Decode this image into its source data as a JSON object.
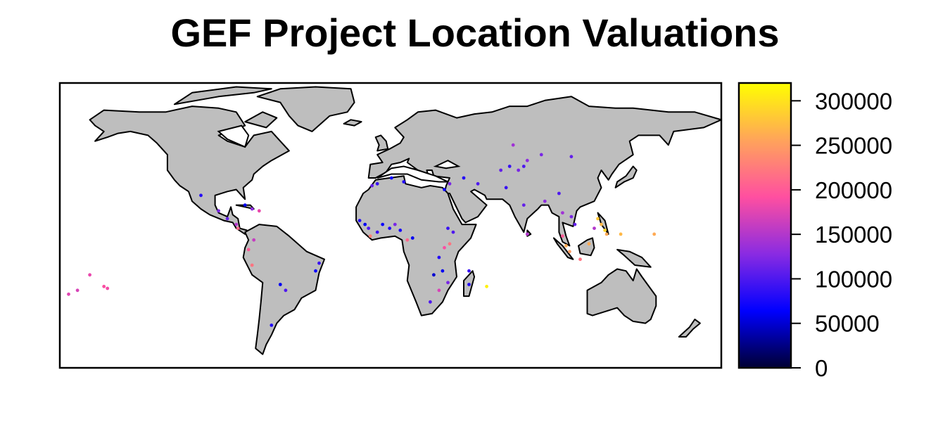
{
  "title": "GEF Project Location Valuations",
  "colorbar": {
    "min": 0,
    "max": 320000,
    "ticks": [
      {
        "value": 0,
        "label": "0"
      },
      {
        "value": 50000,
        "label": "50000"
      },
      {
        "value": 100000,
        "label": "100000"
      },
      {
        "value": 150000,
        "label": "150000"
      },
      {
        "value": 200000,
        "label": "200000"
      },
      {
        "value": 250000,
        "label": "250000"
      },
      {
        "value": 300000,
        "label": "300000"
      }
    ],
    "stops": [
      "#000033",
      "#0000ff",
      "#8a2be2",
      "#ff4fa0",
      "#ffa45a",
      "#ffff00"
    ]
  },
  "colors": {
    "land": "#bebebe",
    "border": "#000000",
    "ocean": "#ffffff"
  },
  "projects": [
    {
      "lon": -95,
      "lat": 19,
      "value": 120000
    },
    {
      "lon": -90,
      "lat": 15,
      "value": 110000
    },
    {
      "lon": -85,
      "lat": 12,
      "value": 150000
    },
    {
      "lon": -84,
      "lat": 10,
      "value": 210000
    },
    {
      "lon": -80,
      "lat": 22,
      "value": 60000
    },
    {
      "lon": -76,
      "lat": 20,
      "value": 130000
    },
    {
      "lon": -72,
      "lat": 19,
      "value": 180000
    },
    {
      "lon": -105,
      "lat": 27,
      "value": 80000
    },
    {
      "lon": -75,
      "lat": 4,
      "value": 160000
    },
    {
      "lon": -78,
      "lat": -1,
      "value": 200000
    },
    {
      "lon": -76,
      "lat": -9,
      "value": 220000
    },
    {
      "lon": -60,
      "lat": -19,
      "value": 60000
    },
    {
      "lon": -57,
      "lat": -22,
      "value": 100000
    },
    {
      "lon": -40,
      "lat": -12,
      "value": 70000
    },
    {
      "lon": -38,
      "lat": -8,
      "value": 90000
    },
    {
      "lon": -65,
      "lat": -40,
      "value": 80000
    },
    {
      "lon": -168,
      "lat": -14,
      "value": 180000
    },
    {
      "lon": -175,
      "lat": -22,
      "value": 170000
    },
    {
      "lon": -160,
      "lat": -20,
      "value": 190000
    },
    {
      "lon": -158,
      "lat": -21,
      "value": 185000
    },
    {
      "lon": -180,
      "lat": -24,
      "value": 175000
    },
    {
      "lon": -8,
      "lat": 32,
      "value": 110000
    },
    {
      "lon": -5,
      "lat": 33,
      "value": 90000
    },
    {
      "lon": 3,
      "lat": 36,
      "value": 70000
    },
    {
      "lon": 10,
      "lat": 34,
      "value": 80000
    },
    {
      "lon": -15,
      "lat": 14,
      "value": 80000
    },
    {
      "lon": -12,
      "lat": 12,
      "value": 60000
    },
    {
      "lon": -10,
      "lat": 10,
      "value": 100000
    },
    {
      "lon": -5,
      "lat": 8,
      "value": 90000
    },
    {
      "lon": -2,
      "lat": 12,
      "value": 70000
    },
    {
      "lon": 2,
      "lat": 10,
      "value": 80000
    },
    {
      "lon": 5,
      "lat": 12,
      "value": 120000
    },
    {
      "lon": 8,
      "lat": 9,
      "value": 75000
    },
    {
      "lon": -9,
      "lat": 6,
      "value": 230000
    },
    {
      "lon": 12,
      "lat": 4,
      "value": 210000
    },
    {
      "lon": 15,
      "lat": 5,
      "value": 60000
    },
    {
      "lon": 35,
      "lat": 10,
      "value": 90000
    },
    {
      "lon": 38,
      "lat": 8,
      "value": 100000
    },
    {
      "lon": 36,
      "lat": 2,
      "value": 220000
    },
    {
      "lon": 33,
      "lat": 0,
      "value": 190000
    },
    {
      "lon": 30,
      "lat": -5,
      "value": 80000
    },
    {
      "lon": 32,
      "lat": -12,
      "value": 60000
    },
    {
      "lon": 35,
      "lat": -18,
      "value": 120000
    },
    {
      "lon": 30,
      "lat": -22,
      "value": 170000
    },
    {
      "lon": 47,
      "lat": -19,
      "value": 80000
    },
    {
      "lon": 47,
      "lat": -12,
      "value": 90000
    },
    {
      "lon": 27,
      "lat": -14,
      "value": 50000
    },
    {
      "lon": 25,
      "lat": -28,
      "value": 100000
    },
    {
      "lon": 57,
      "lat": -20,
      "value": 310000
    },
    {
      "lon": 33,
      "lat": 30,
      "value": 70000
    },
    {
      "lon": 36,
      "lat": 33,
      "value": 120000
    },
    {
      "lon": 44,
      "lat": 36,
      "value": 80000
    },
    {
      "lon": 52,
      "lat": 33,
      "value": 100000
    },
    {
      "lon": 65,
      "lat": 40,
      "value": 110000
    },
    {
      "lon": 70,
      "lat": 42,
      "value": 90000
    },
    {
      "lon": 75,
      "lat": 40,
      "value": 120000
    },
    {
      "lon": 78,
      "lat": 42,
      "value": 100000
    },
    {
      "lon": 80,
      "lat": 45,
      "value": 130000
    },
    {
      "lon": 72,
      "lat": 53,
      "value": 140000
    },
    {
      "lon": 88,
      "lat": 48,
      "value": 120000
    },
    {
      "lon": 105,
      "lat": 47,
      "value": 110000
    },
    {
      "lon": 68,
      "lat": 31,
      "value": 90000
    },
    {
      "lon": 78,
      "lat": 22,
      "value": 110000
    },
    {
      "lon": 80,
      "lat": 7,
      "value": 150000
    },
    {
      "lon": 90,
      "lat": 24,
      "value": 130000
    },
    {
      "lon": 98,
      "lat": 28,
      "value": 100000
    },
    {
      "lon": 100,
      "lat": 18,
      "value": 140000
    },
    {
      "lon": 105,
      "lat": 16,
      "value": 120000
    },
    {
      "lon": 107,
      "lat": 12,
      "value": 110000
    },
    {
      "lon": 100,
      "lat": 6,
      "value": 200000
    },
    {
      "lon": 102,
      "lat": 1,
      "value": 260000
    },
    {
      "lon": 104,
      "lat": -2,
      "value": 250000
    },
    {
      "lon": 110,
      "lat": -6,
      "value": 220000
    },
    {
      "lon": 115,
      "lat": 2,
      "value": 260000
    },
    {
      "lon": 120,
      "lat": 15,
      "value": 280000
    },
    {
      "lon": 122,
      "lat": 12,
      "value": 270000
    },
    {
      "lon": 124,
      "lat": 9,
      "value": 290000
    },
    {
      "lon": 125,
      "lat": 7,
      "value": 260000
    },
    {
      "lon": 118,
      "lat": 10,
      "value": 150000
    },
    {
      "lon": 133,
      "lat": 7,
      "value": 270000
    },
    {
      "lon": 152,
      "lat": 7,
      "value": 260000
    }
  ]
}
